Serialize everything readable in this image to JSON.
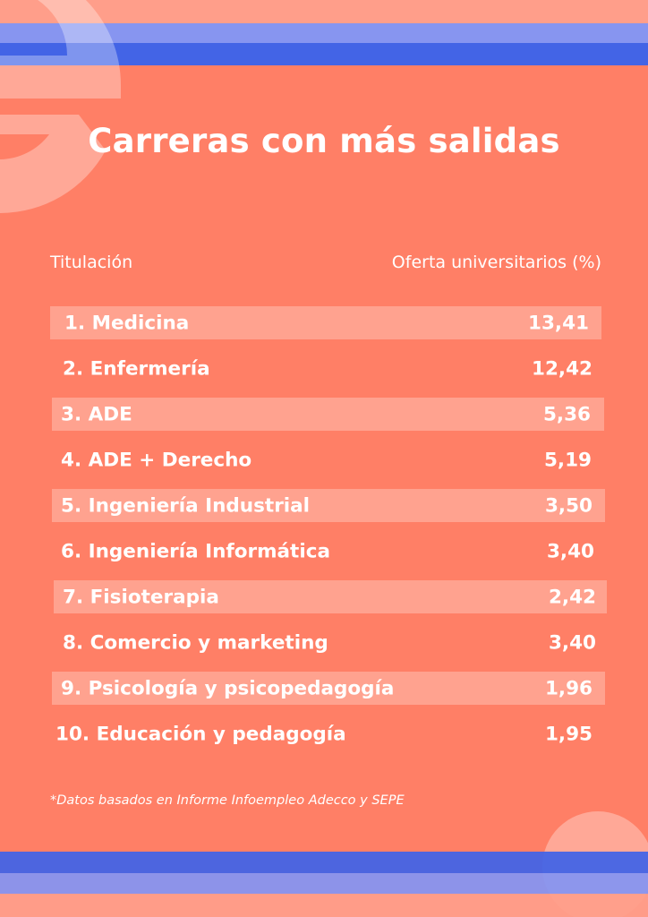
{
  "title": "Carreras con más salidas",
  "columns": {
    "left": "Titulación",
    "right": "Oferta universitarios (%)"
  },
  "rows": [
    {
      "label": "1.  Medicina",
      "value": "13,41"
    },
    {
      "label": "2. Enfermería",
      "value": "12,42"
    },
    {
      "label": "3. ADE",
      "value": "5,36"
    },
    {
      "label": "4. ADE + Derecho",
      "value": "5,19"
    },
    {
      "label": "5. Ingeniería Industrial",
      "value": "3,50"
    },
    {
      "label": "6. Ingeniería Informática",
      "value": "3,40"
    },
    {
      "label": "7. Fisioterapia",
      "value": "2,42"
    },
    {
      "label": "8. Comercio y marketing",
      "value": "3,40"
    },
    {
      "label": "9. Psicología y psicopedagogía",
      "value": "1,96"
    },
    {
      "label": "10. Educación y pedagogía",
      "value": "1,95"
    }
  ],
  "footnote": "*Datos basados en Informe Infoempleo Adecco y SEPE",
  "colors": {
    "background": "#ff7f66",
    "band": "#ffa28f",
    "stripe_light": "#ff9e8a",
    "stripe_mid": "#8795f0",
    "stripe_dark": "#4364e6",
    "text": "#ffffff"
  },
  "decorations": {
    "top_left": "letter-e-shape",
    "bottom_right": "circle-shape"
  }
}
